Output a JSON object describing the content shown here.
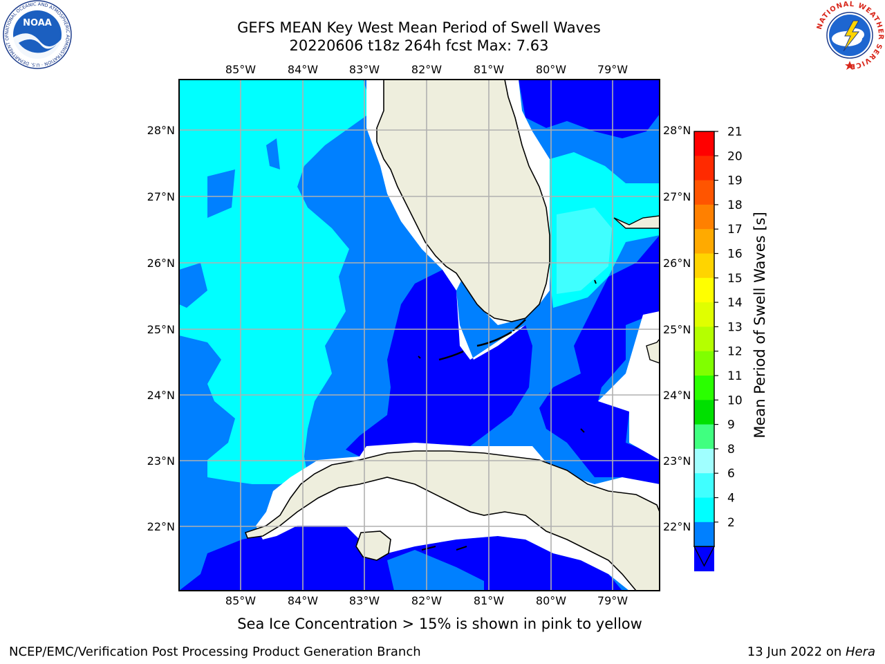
{
  "header": {
    "title_line1": "GEFS MEAN Key West Mean Period of Swell Waves",
    "title_line2": "20220606 t18z 264h fcst   Max: 7.63"
  },
  "logos": {
    "left": {
      "text": "NOAA",
      "ring_text": "NATIONAL OCEANIC AND ATMOSPHERIC ADMINISTRATION · U.S. DEPARTMENT OF COMMERCE"
    },
    "right": {
      "ring_text": "NATIONAL WEATHER SERVICE"
    }
  },
  "map": {
    "lon_labels": [
      "85°W",
      "84°W",
      "83°W",
      "82°W",
      "81°W",
      "80°W",
      "79°W"
    ],
    "lat_labels": [
      "28°N",
      "27°N",
      "26°N",
      "25°N",
      "24°N",
      "23°N",
      "22°N"
    ],
    "colors": {
      "land": "#eeeedd",
      "no_data": "#ffffff",
      "band_2_4": "#0000ff",
      "band_4_6": "#0080ff",
      "band_6_7": "#00ffff",
      "band_7_8": "#40ffff",
      "grid": "#b0b0b0"
    }
  },
  "colorbar": {
    "label": "Mean Period of Swell Waves [s]",
    "ticks": [
      "21",
      "20",
      "19",
      "18",
      "17",
      "16",
      "15",
      "14",
      "13",
      "12",
      "11",
      "10",
      "9",
      "8",
      "6",
      "4",
      "2"
    ],
    "colors": [
      "#ff0000",
      "#ff2a00",
      "#ff5500",
      "#ff8000",
      "#ffaa00",
      "#ffd400",
      "#ffff00",
      "#e0ff00",
      "#b5ff00",
      "#80ff00",
      "#2aff00",
      "#00e000",
      "#40ff80",
      "#a0ffff",
      "#40ffff",
      "#00ffff",
      "#0080ff",
      "#0000ff"
    ]
  },
  "notes": {
    "sea_ice": "Sea Ice Concentration > 15% is shown in pink to yellow"
  },
  "footer": {
    "left": "NCEP/EMC/Verification Post Processing Product Generation Branch",
    "right_date": "13 Jun 2022 on ",
    "right_host": "Hera"
  }
}
